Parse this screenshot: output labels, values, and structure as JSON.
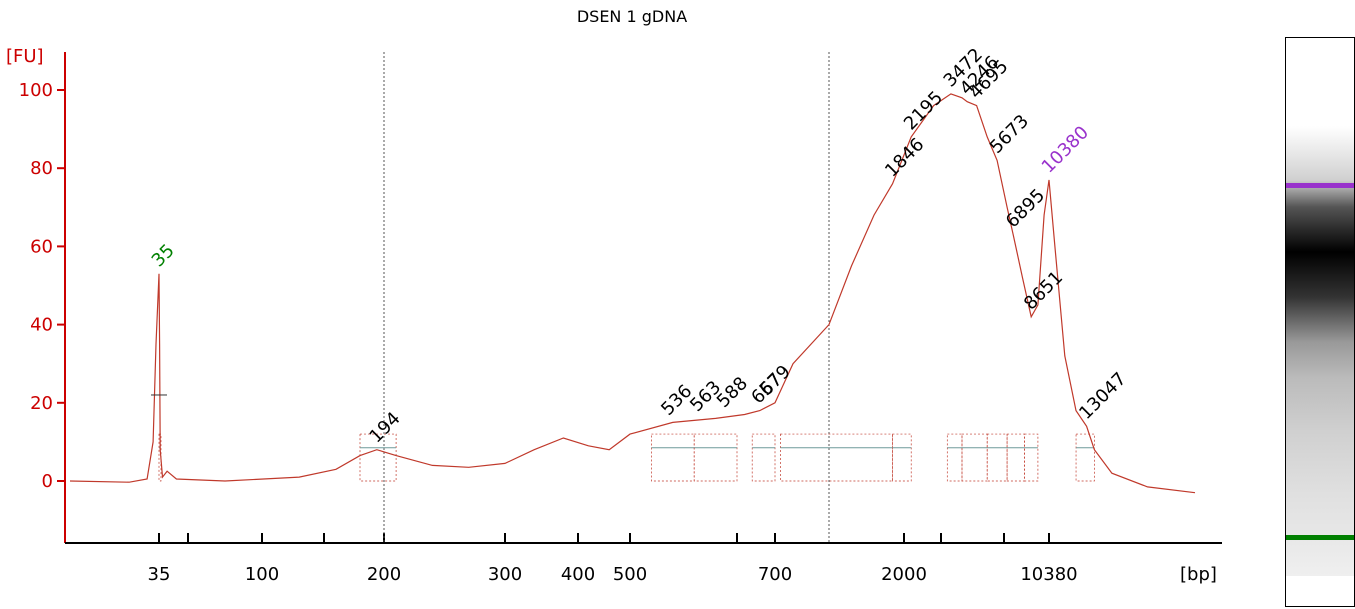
{
  "title": "DSEN 1 gDNA",
  "colors": {
    "trace": "#c0392b",
    "axis": "#cc0000",
    "lower_marker": "#008000",
    "upper_marker": "#9932cc",
    "sample_peak": "#000000",
    "region_fill": "#6f9a9a"
  },
  "chart_data": {
    "type": "line",
    "title": "DSEN 1 gDNA",
    "ylabel": "[FU]",
    "xlabel": "[bp]",
    "ylim": [
      -15,
      110
    ],
    "y_ticks": [
      0,
      20,
      40,
      60,
      80,
      100
    ],
    "x_tick_labels": [
      "35",
      "100",
      "200",
      "300",
      "400",
      "500",
      "700",
      "2000",
      "10380"
    ],
    "x_tick_label_positions_bp": [
      35,
      100,
      200,
      300,
      400,
      500,
      700,
      2000,
      10380
    ],
    "x_axis_note": "non-linear size axis (ladder-calibrated)",
    "dashed_reference_lines_bp": [
      200,
      1000
    ],
    "markers": [
      {
        "label": "35",
        "bp": 35,
        "fu": 53,
        "kind": "lower_marker"
      },
      {
        "label": "10380",
        "bp": 10380,
        "fu": 77,
        "kind": "upper_marker"
      }
    ],
    "peaks": [
      {
        "label": "194",
        "bp": 194,
        "fu": 8
      },
      {
        "label": "536",
        "bp": 536,
        "fu": 15
      },
      {
        "label": "563",
        "bp": 563,
        "fu": 16
      },
      {
        "label": "588",
        "bp": 588,
        "fu": 17
      },
      {
        "label": "657",
        "bp": 657,
        "fu": 18
      },
      {
        "label": "679",
        "bp": 679,
        "fu": 20
      },
      {
        "label": "1846",
        "bp": 1846,
        "fu": 76
      },
      {
        "label": "2195",
        "bp": 2195,
        "fu": 88
      },
      {
        "label": "3472",
        "bp": 3472,
        "fu": 99
      },
      {
        "label": "4246",
        "bp": 4246,
        "fu": 97
      },
      {
        "label": "4695",
        "bp": 4695,
        "fu": 96
      },
      {
        "label": "5673",
        "bp": 5673,
        "fu": 82
      },
      {
        "label": "6895",
        "bp": 6895,
        "fu": 63
      },
      {
        "label": "8651",
        "bp": 8651,
        "fu": 42
      },
      {
        "label": "13047",
        "bp": 13047,
        "fu": 14
      }
    ],
    "trace_points_bp_fu": [
      [
        20,
        0
      ],
      [
        30,
        -0.3
      ],
      [
        33,
        0.5
      ],
      [
        34,
        10
      ],
      [
        34.5,
        35
      ],
      [
        35,
        53
      ],
      [
        35.5,
        35
      ],
      [
        36,
        8
      ],
      [
        38,
        1
      ],
      [
        42,
        2.5
      ],
      [
        50,
        0.5
      ],
      [
        80,
        0
      ],
      [
        130,
        1
      ],
      [
        160,
        3
      ],
      [
        180,
        6.5
      ],
      [
        194,
        8
      ],
      [
        210,
        6.5
      ],
      [
        240,
        4
      ],
      [
        270,
        3.5
      ],
      [
        300,
        4.5
      ],
      [
        340,
        8
      ],
      [
        380,
        11
      ],
      [
        420,
        9
      ],
      [
        460,
        8
      ],
      [
        500,
        12
      ],
      [
        540,
        15
      ],
      [
        580,
        16
      ],
      [
        620,
        17
      ],
      [
        660,
        18
      ],
      [
        700,
        20
      ],
      [
        800,
        30
      ],
      [
        1000,
        40
      ],
      [
        1300,
        55
      ],
      [
        1600,
        68
      ],
      [
        1846,
        76
      ],
      [
        2195,
        88
      ],
      [
        2800,
        96
      ],
      [
        3472,
        99
      ],
      [
        4000,
        98
      ],
      [
        4246,
        97
      ],
      [
        4695,
        96
      ],
      [
        5200,
        88
      ],
      [
        5673,
        82
      ],
      [
        6300,
        70
      ],
      [
        6895,
        63
      ],
      [
        7800,
        52
      ],
      [
        8651,
        42
      ],
      [
        9300,
        45
      ],
      [
        9900,
        68
      ],
      [
        10380,
        77
      ],
      [
        10800,
        60
      ],
      [
        11500,
        32
      ],
      [
        12300,
        18
      ],
      [
        13047,
        14
      ],
      [
        13600,
        8
      ],
      [
        14500,
        2
      ],
      [
        16000,
        -1.5
      ],
      [
        18000,
        -3
      ]
    ],
    "grid": false,
    "legend": "none"
  },
  "gel": {
    "upper_marker_color": "#9932cc",
    "lower_marker_color": "#008000"
  }
}
